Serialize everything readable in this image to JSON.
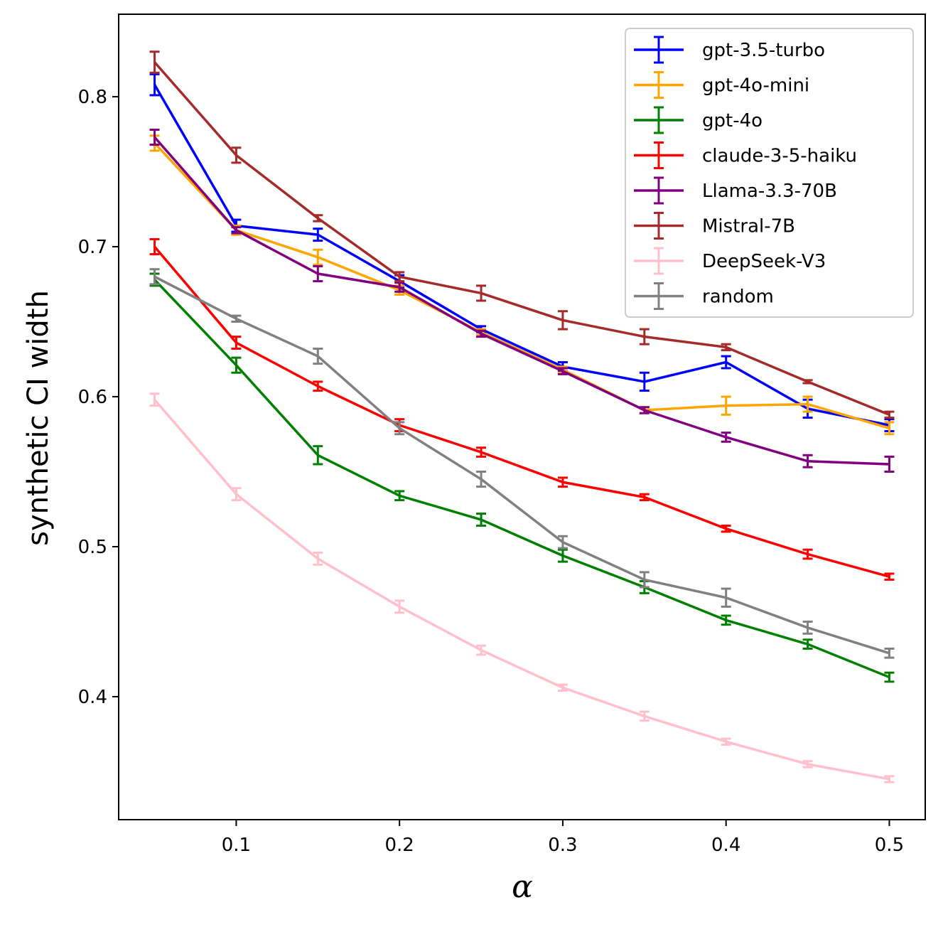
{
  "chart_data": {
    "type": "line",
    "title": "",
    "xlabel": "α",
    "ylabel": "synthetic CI width",
    "xlim": [
      0.028,
      0.522
    ],
    "ylim": [
      0.318,
      0.855
    ],
    "x_ticks": [
      0.1,
      0.2,
      0.3,
      0.4,
      0.5
    ],
    "x_tick_labels": [
      "0.1",
      "0.2",
      "0.3",
      "0.4",
      "0.5"
    ],
    "y_ticks": [
      0.4,
      0.5,
      0.6,
      0.7,
      0.8
    ],
    "y_tick_labels": [
      "0.4",
      "0.5",
      "0.6",
      "0.7",
      "0.8"
    ],
    "grid": false,
    "legend_position": "top-right",
    "x": [
      0.05,
      0.1,
      0.15,
      0.2,
      0.25,
      0.3,
      0.35,
      0.4,
      0.45,
      0.5
    ],
    "series": [
      {
        "name": "gpt-3.5-turbo",
        "color": "#0000ff",
        "values": [
          0.808,
          0.714,
          0.708,
          0.677,
          0.645,
          0.62,
          0.61,
          0.623,
          0.592,
          0.581
        ],
        "errors": [
          0.007,
          0.004,
          0.004,
          0.004,
          0.002,
          0.003,
          0.006,
          0.004,
          0.006,
          0.004
        ]
      },
      {
        "name": "gpt-4o-mini",
        "color": "#ffa500",
        "values": [
          0.769,
          0.711,
          0.693,
          0.671,
          0.643,
          0.618,
          0.591,
          0.594,
          0.595,
          0.579
        ],
        "errors": [
          0.005,
          0.003,
          0.005,
          0.003,
          0.002,
          0.002,
          0.002,
          0.006,
          0.005,
          0.004
        ]
      },
      {
        "name": "gpt-4o",
        "color": "#008000",
        "values": [
          0.678,
          0.621,
          0.561,
          0.534,
          0.518,
          0.494,
          0.473,
          0.451,
          0.435,
          0.413
        ],
        "errors": [
          0.004,
          0.005,
          0.006,
          0.003,
          0.004,
          0.004,
          0.004,
          0.003,
          0.003,
          0.003
        ]
      },
      {
        "name": "claude-3-5-haiku",
        "color": "#ff0000",
        "values": [
          0.7,
          0.636,
          0.607,
          0.581,
          0.563,
          0.543,
          0.533,
          0.512,
          0.495,
          0.48
        ],
        "errors": [
          0.005,
          0.004,
          0.003,
          0.004,
          0.003,
          0.003,
          0.002,
          0.002,
          0.003,
          0.002
        ]
      },
      {
        "name": "Llama-3.3-70B",
        "color": "#800080",
        "values": [
          0.773,
          0.711,
          0.682,
          0.673,
          0.642,
          0.617,
          0.591,
          0.573,
          0.557,
          0.555
        ],
        "errors": [
          0.005,
          0.002,
          0.005,
          0.003,
          0.002,
          0.002,
          0.002,
          0.003,
          0.004,
          0.005
        ]
      },
      {
        "name": "Mistral-7B",
        "color": "#a52a2a",
        "values": [
          0.823,
          0.761,
          0.719,
          0.68,
          0.669,
          0.651,
          0.64,
          0.633,
          0.61,
          0.588
        ],
        "errors": [
          0.007,
          0.005,
          0.002,
          0.003,
          0.005,
          0.006,
          0.005,
          0.002,
          0.001,
          0.002
        ]
      },
      {
        "name": "DeepSeek-V3",
        "color": "#ffc0cb",
        "values": [
          0.598,
          0.535,
          0.492,
          0.46,
          0.431,
          0.406,
          0.387,
          0.37,
          0.355,
          0.345
        ],
        "errors": [
          0.004,
          0.004,
          0.004,
          0.004,
          0.003,
          0.002,
          0.003,
          0.002,
          0.002,
          0.002
        ]
      },
      {
        "name": "random",
        "color": "#808080",
        "values": [
          0.68,
          0.652,
          0.627,
          0.579,
          0.545,
          0.503,
          0.478,
          0.466,
          0.446,
          0.429
        ],
        "errors": [
          0.005,
          0.002,
          0.005,
          0.004,
          0.005,
          0.004,
          0.005,
          0.006,
          0.004,
          0.003
        ]
      }
    ]
  }
}
